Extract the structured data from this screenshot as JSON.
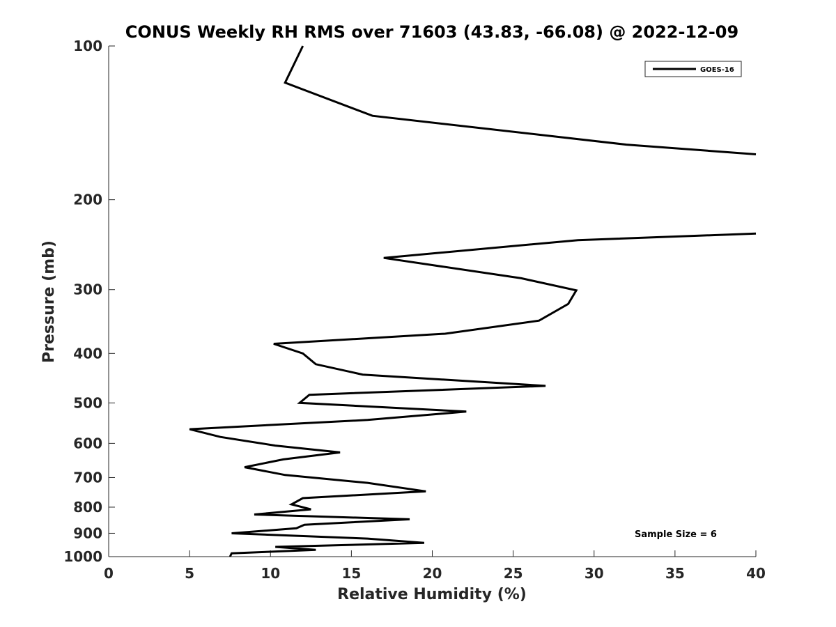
{
  "chart_data": {
    "type": "line",
    "title": "CONUS Weekly RH RMS over 71603 (43.83, -66.08) @ 2022-12-09",
    "xlabel": "Relative Humidity (%)",
    "ylabel": "Pressure (mb)",
    "xlim": [
      0,
      40
    ],
    "ylim": [
      100,
      1000
    ],
    "y_scale": "log",
    "y_reversed": true,
    "x_ticks": [
      "0",
      "5",
      "10",
      "15",
      "20",
      "25",
      "30",
      "35",
      "40"
    ],
    "y_ticks": [
      "100",
      "200",
      "300",
      "400",
      "500",
      "600",
      "700",
      "800",
      "900",
      "1000"
    ],
    "grid": false,
    "legend_position": "top-right",
    "annotation": "Sample Size = 6",
    "series": [
      {
        "name": "GOES-16",
        "color": "#000000",
        "x": [
          12.0,
          10.9,
          16.3,
          32.0,
          40.0,
          null,
          40.0,
          29.0,
          17.0,
          25.5,
          28.9,
          28.4,
          26.6,
          20.8,
          10.2,
          12.0,
          12.8,
          15.7,
          27.0,
          12.4,
          11.8,
          22.1,
          16.0,
          5.0,
          6.9,
          10.3,
          14.3,
          10.8,
          8.4,
          10.9,
          16.0,
          19.6,
          12.0,
          11.3,
          12.5,
          9.0,
          18.6,
          12.1,
          11.6,
          7.6,
          16.0,
          19.5,
          10.3,
          12.8,
          7.6,
          7.5
        ],
        "y": [
          100,
          118,
          137,
          156,
          163,
          null,
          233,
          240,
          260,
          285,
          301,
          320,
          345,
          366,
          383,
          400,
          420,
          440,
          463,
          482,
          500,
          520,
          540,
          563,
          583,
          606,
          625,
          645,
          668,
          692,
          717,
          745,
          768,
          790,
          808,
          827,
          845,
          866,
          880,
          900,
          922,
          940,
          957,
          970,
          985,
          1000
        ]
      }
    ]
  }
}
